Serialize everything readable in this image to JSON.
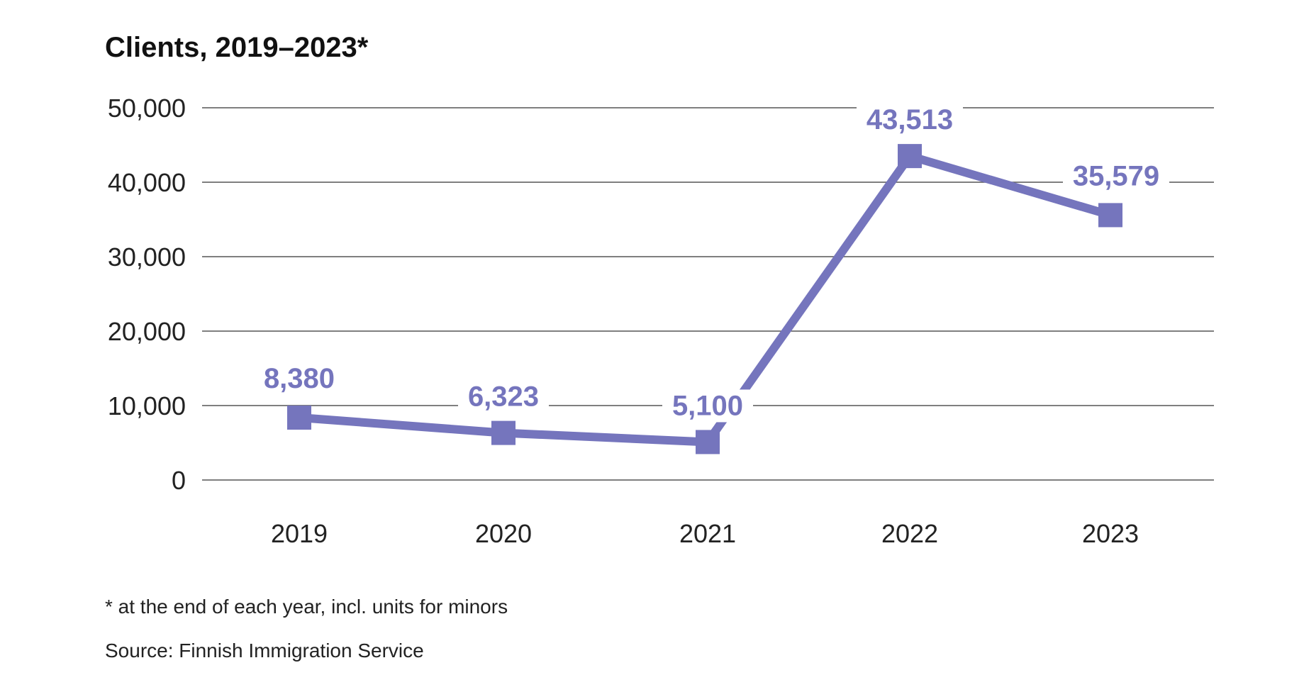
{
  "chart_data": {
    "type": "line",
    "title": "Clients, 2019–2023*",
    "xlabel": "",
    "ylabel": "",
    "categories": [
      "2019",
      "2020",
      "2021",
      "2022",
      "2023"
    ],
    "series": [
      {
        "values": [
          8380,
          6323,
          5100,
          43513,
          35579
        ],
        "data_labels": [
          "8,380",
          "6,323",
          "5,100",
          "43,513",
          "35,579"
        ],
        "color": "#7575bd",
        "marker": "square"
      }
    ],
    "ylim": [
      0,
      50000
    ],
    "yticks": [
      0,
      10000,
      20000,
      30000,
      40000,
      50000
    ],
    "ytick_labels": [
      "0",
      "10,000",
      "20,000",
      "30,000",
      "40,000",
      "50,000"
    ],
    "grid": true,
    "legend": "none"
  },
  "footnote": "* at the end of each year, incl. units for minors",
  "source": "Source: Finnish Immigration Service",
  "colors": {
    "series": "#7575bd",
    "grid": "#555555",
    "text": "#222222"
  }
}
